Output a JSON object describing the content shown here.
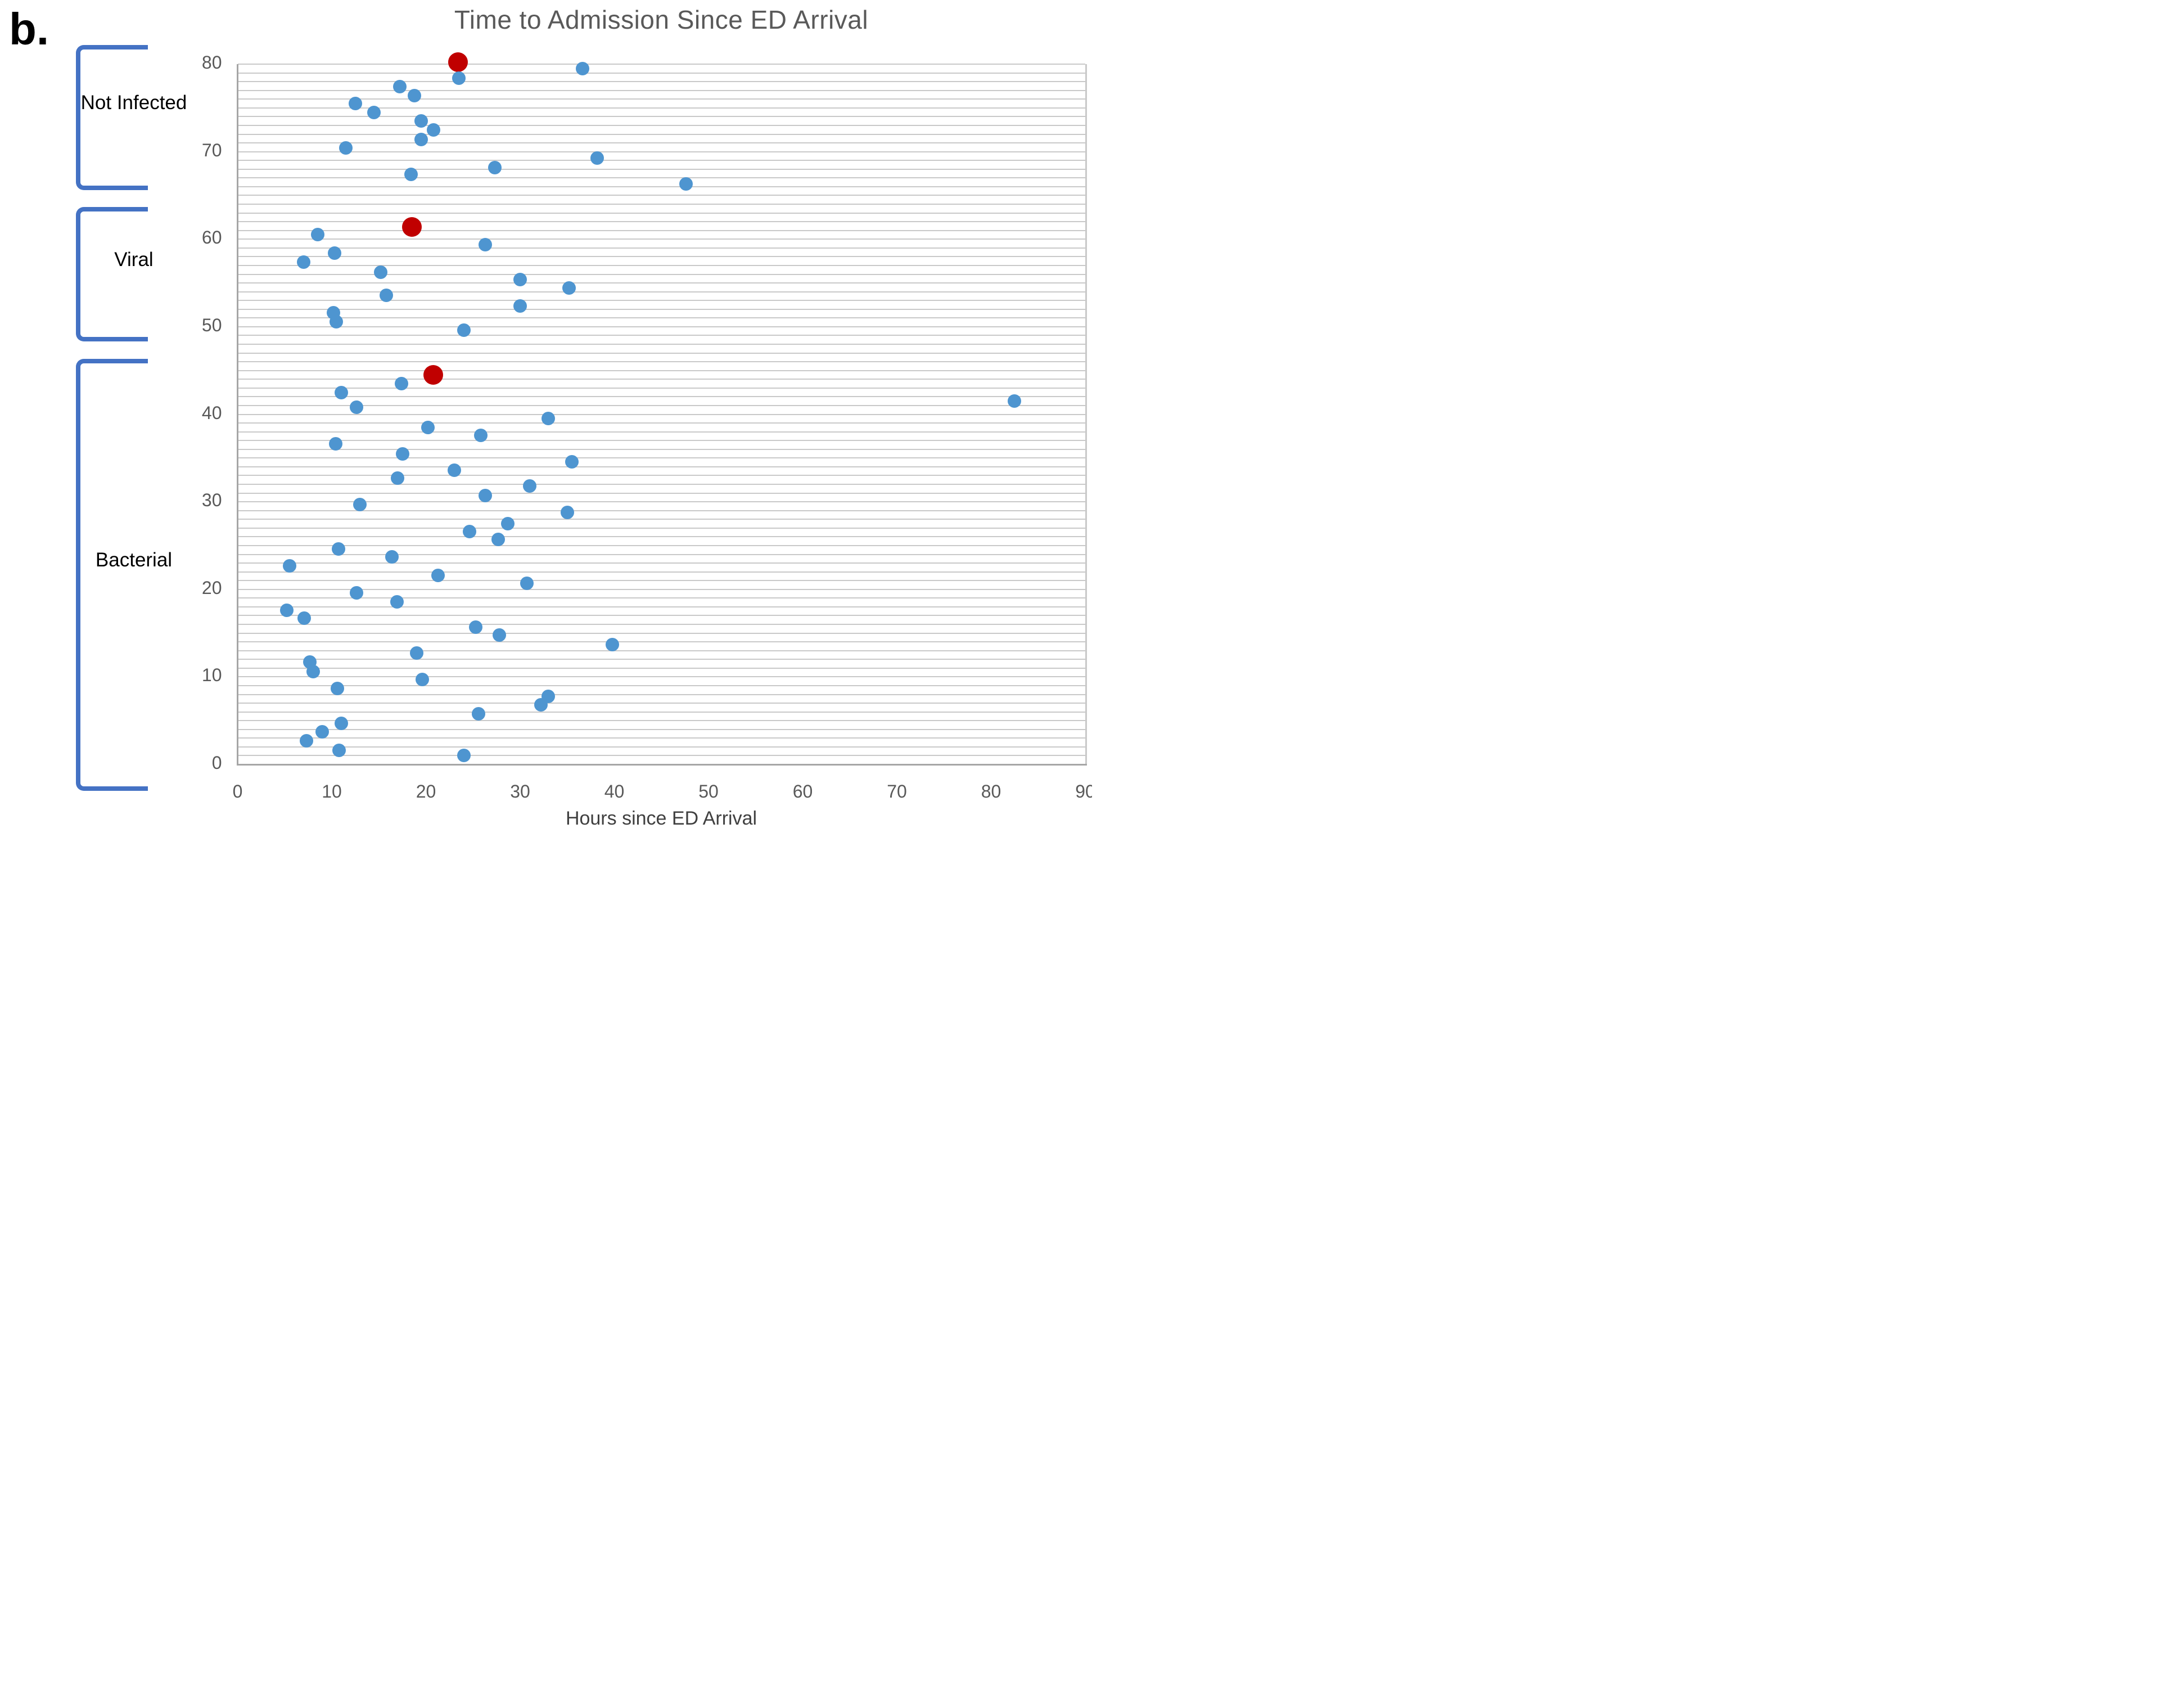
{
  "figure_label": "b.",
  "chart_data": {
    "type": "scatter",
    "title": "Time to Admission Since ED Arrival",
    "xlabel": "Hours since ED Arrival",
    "ylabel": "",
    "xlim": [
      0,
      90
    ],
    "ylim": [
      0,
      80
    ],
    "x_ticks": [
      0,
      10,
      20,
      30,
      40,
      50,
      60,
      70,
      80,
      90
    ],
    "y_ticks": [
      0,
      10,
      20,
      30,
      40,
      50,
      60,
      70,
      80
    ],
    "grid": "horizontal-minor-every-1-unit",
    "legend": "none",
    "colors": {
      "point": "#4e95d0",
      "highlight": "#c00000",
      "grid": "#c9c9c9",
      "axis": "#a6a6a6",
      "text": "#595959",
      "bracket": "#4472c4",
      "group_label": "#000000"
    },
    "groups": [
      {
        "name": "Not Infected",
        "bracket_span": [
          65.6,
          82.2
        ],
        "points": [
          {
            "x": 23.4,
            "y": 80.2,
            "c": "red"
          },
          {
            "x": 36.6,
            "y": 79.5
          },
          {
            "x": 23.5,
            "y": 78.4
          },
          {
            "x": 17.2,
            "y": 77.4
          },
          {
            "x": 18.8,
            "y": 76.4
          },
          {
            "x": 12.5,
            "y": 75.5
          },
          {
            "x": 14.5,
            "y": 74.5
          },
          {
            "x": 19.5,
            "y": 73.5
          },
          {
            "x": 20.8,
            "y": 72.5
          },
          {
            "x": 19.5,
            "y": 71.4
          },
          {
            "x": 11.5,
            "y": 70.4
          },
          {
            "x": 38.2,
            "y": 69.3
          },
          {
            "x": 27.3,
            "y": 68.2
          },
          {
            "x": 18.4,
            "y": 67.4
          },
          {
            "x": 47.6,
            "y": 66.3
          }
        ]
      },
      {
        "name": "Viral",
        "bracket_span": [
          48.3,
          63.7
        ],
        "points": [
          {
            "x": 18.5,
            "y": 61.4,
            "c": "red"
          },
          {
            "x": 8.5,
            "y": 60.5
          },
          {
            "x": 26.3,
            "y": 59.4
          },
          {
            "x": 10.3,
            "y": 58.4
          },
          {
            "x": 7.0,
            "y": 57.4
          },
          {
            "x": 15.2,
            "y": 56.2
          },
          {
            "x": 30.0,
            "y": 55.4
          },
          {
            "x": 35.2,
            "y": 54.4
          },
          {
            "x": 15.8,
            "y": 53.6
          },
          {
            "x": 30.0,
            "y": 52.4
          },
          {
            "x": 10.2,
            "y": 51.6
          },
          {
            "x": 10.5,
            "y": 50.6
          },
          {
            "x": 24.0,
            "y": 49.6
          }
        ]
      },
      {
        "name": "Bacterial",
        "bracket_span": [
          -3.0,
          46.3
        ],
        "points": [
          {
            "x": 20.8,
            "y": 44.5,
            "c": "red"
          },
          {
            "x": 17.4,
            "y": 43.5
          },
          {
            "x": 11.0,
            "y": 42.5
          },
          {
            "x": 82.5,
            "y": 41.5
          },
          {
            "x": 12.6,
            "y": 40.8
          },
          {
            "x": 33.0,
            "y": 39.5
          },
          {
            "x": 20.2,
            "y": 38.5
          },
          {
            "x": 25.8,
            "y": 37.6
          },
          {
            "x": 10.4,
            "y": 36.6
          },
          {
            "x": 17.5,
            "y": 35.5
          },
          {
            "x": 35.5,
            "y": 34.6
          },
          {
            "x": 23.0,
            "y": 33.6
          },
          {
            "x": 17.0,
            "y": 32.7
          },
          {
            "x": 31.0,
            "y": 31.8
          },
          {
            "x": 26.3,
            "y": 30.7
          },
          {
            "x": 13.0,
            "y": 29.7
          },
          {
            "x": 35.0,
            "y": 28.8
          },
          {
            "x": 28.7,
            "y": 27.5
          },
          {
            "x": 24.6,
            "y": 26.6
          },
          {
            "x": 27.7,
            "y": 25.7
          },
          {
            "x": 10.7,
            "y": 24.6
          },
          {
            "x": 16.4,
            "y": 23.7
          },
          {
            "x": 5.5,
            "y": 22.7
          },
          {
            "x": 21.3,
            "y": 21.6
          },
          {
            "x": 30.7,
            "y": 20.7
          },
          {
            "x": 12.6,
            "y": 19.6
          },
          {
            "x": 16.9,
            "y": 18.6
          },
          {
            "x": 5.2,
            "y": 17.6
          },
          {
            "x": 7.1,
            "y": 16.7
          },
          {
            "x": 25.3,
            "y": 15.7
          },
          {
            "x": 27.8,
            "y": 14.8
          },
          {
            "x": 39.8,
            "y": 13.7
          },
          {
            "x": 19.0,
            "y": 12.7
          },
          {
            "x": 7.7,
            "y": 11.7
          },
          {
            "x": 8.0,
            "y": 10.6
          },
          {
            "x": 19.6,
            "y": 9.7
          },
          {
            "x": 10.6,
            "y": 8.7
          },
          {
            "x": 33.0,
            "y": 7.8
          },
          {
            "x": 32.2,
            "y": 6.8
          },
          {
            "x": 25.6,
            "y": 5.8
          },
          {
            "x": 11.0,
            "y": 4.7
          },
          {
            "x": 9.0,
            "y": 3.7
          },
          {
            "x": 7.3,
            "y": 2.7
          },
          {
            "x": 10.8,
            "y": 1.6
          },
          {
            "x": 24.0,
            "y": 1.0
          }
        ]
      }
    ]
  }
}
